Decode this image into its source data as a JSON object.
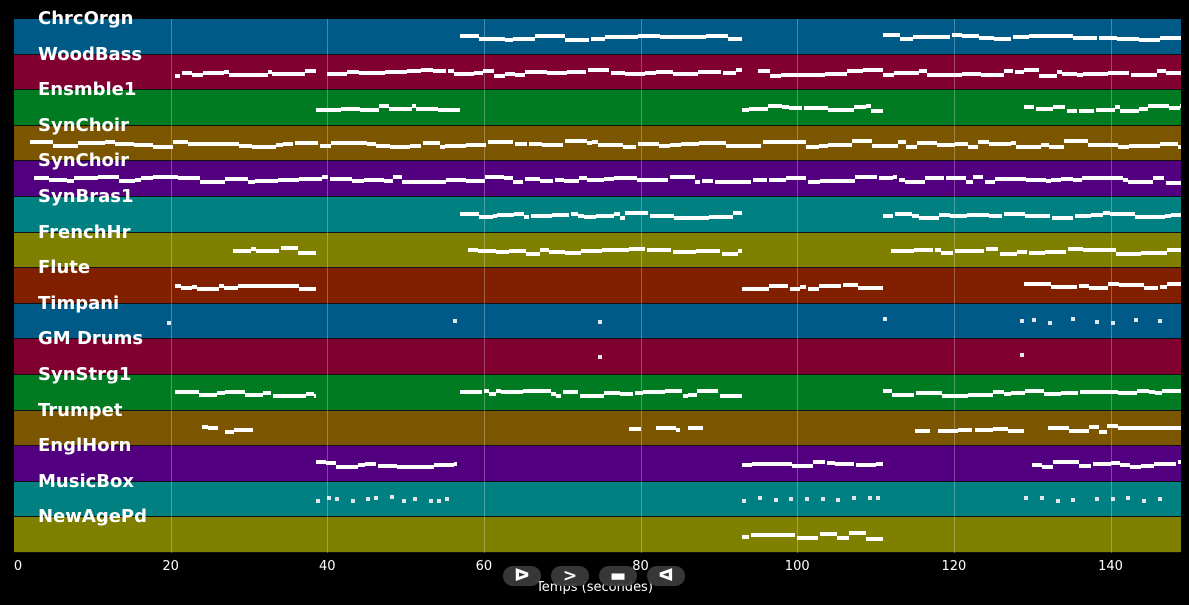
{
  "tracks": [
    {
      "name": "ChrcOrgn",
      "color": "#005a87"
    },
    {
      "name": "WoodBass",
      "color": "#800030"
    },
    {
      "name": "Ensmble1",
      "color": "#007b22"
    },
    {
      "name": "SynChoir",
      "color": "#7b5500"
    },
    {
      "name": "SynChoir",
      "color": "#520080"
    },
    {
      "name": "SynBras1",
      "color": "#008080"
    },
    {
      "name": "FrenchHr",
      "color": "#7f7f00"
    },
    {
      "name": "Flute",
      "color": "#802000"
    },
    {
      "name": "Timpani",
      "color": "#005a87"
    },
    {
      "name": "GM Drums",
      "color": "#800030"
    },
    {
      "name": "SynStrg1",
      "color": "#007b22"
    },
    {
      "name": "Trumpet",
      "color": "#7b5500"
    },
    {
      "name": "EnglHorn",
      "color": "#520080"
    },
    {
      "name": "MusicBox",
      "color": "#008080"
    },
    {
      "name": "NewAgePd",
      "color": "#7f7f00"
    }
  ],
  "chart_data": {
    "type": "timeline",
    "xlabel": "Temps (secondes)",
    "xlim": [
      0,
      149
    ],
    "xticks": [
      "0",
      "20",
      "40",
      "60",
      "80",
      "100",
      "120",
      "140"
    ],
    "series": [
      {
        "name": "ChrcOrgn",
        "segments": [
          [
            57,
            93
          ],
          [
            111,
            149
          ]
        ]
      },
      {
        "name": "WoodBass",
        "segments": [
          [
            20.5,
            38.5
          ],
          [
            40,
            93
          ],
          [
            95,
            149
          ]
        ]
      },
      {
        "name": "Ensmble1",
        "segments": [
          [
            38.5,
            57
          ],
          [
            93,
            111
          ],
          [
            129,
            149
          ]
        ]
      },
      {
        "name": "SynChoir",
        "segments": [
          [
            2,
            149
          ]
        ]
      },
      {
        "name": "SynChoir",
        "segments": [
          [
            2.5,
            149
          ]
        ]
      },
      {
        "name": "SynBras1",
        "segments": [
          [
            57,
            93
          ],
          [
            111,
            149
          ]
        ]
      },
      {
        "name": "FrenchHr",
        "segments": [
          [
            28,
            38.5
          ],
          [
            58,
            93
          ],
          [
            112,
            149
          ]
        ]
      },
      {
        "name": "Flute",
        "segments": [
          [
            20.5,
            38.5
          ],
          [
            93,
            111
          ],
          [
            129,
            149
          ]
        ]
      },
      {
        "name": "Timpani",
        "hits": [
          19.5,
          56,
          74.5,
          111,
          128.5,
          130,
          132,
          135,
          138,
          140,
          143,
          146
        ]
      },
      {
        "name": "GM Drums",
        "hits": [
          74.5,
          128.5
        ]
      },
      {
        "name": "SynStrg1",
        "segments": [
          [
            20.5,
            38.5
          ],
          [
            57,
            93
          ],
          [
            111,
            149
          ]
        ]
      },
      {
        "name": "Trumpet",
        "segments": [
          [
            24,
            26
          ],
          [
            27,
            30.5
          ],
          [
            78.5,
            80
          ],
          [
            82,
            85
          ],
          [
            86,
            88
          ],
          [
            115,
            117
          ],
          [
            118,
            125
          ],
          [
            125,
            129
          ],
          [
            132,
            141
          ],
          [
            141,
            149
          ]
        ]
      },
      {
        "name": "EnglHorn",
        "segments": [
          [
            38.5,
            56.5
          ],
          [
            93,
            111
          ],
          [
            130,
            149
          ]
        ]
      },
      {
        "name": "MusicBox",
        "hits": [
          38.5,
          40,
          41,
          43,
          45,
          46,
          48,
          49.5,
          51,
          53,
          54,
          55,
          93,
          95,
          97,
          99,
          101,
          103,
          105,
          107,
          109,
          110,
          129,
          131,
          133,
          135,
          138,
          140,
          142,
          144,
          146
        ]
      },
      {
        "name": "NewAgePd",
        "segments": [
          [
            93,
            111
          ]
        ]
      }
    ]
  },
  "controls": {
    "play_symbol": "ᐅ",
    "next_symbol": ">",
    "stop_symbol": "▬",
    "back_symbol": "ᐊ"
  }
}
